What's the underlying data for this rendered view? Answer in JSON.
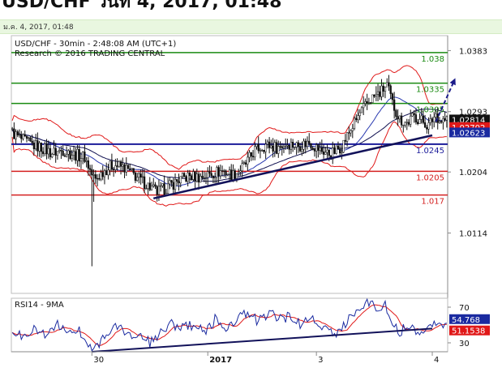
{
  "header": {
    "cut_title": "USD/CHF วันที่ 4, 2017, 01:48",
    "date_line": "ม.ค. 4, 2017, 01:48"
  },
  "chart_data": {
    "type": "candlestick",
    "title": "USD/CHF - 30min - 2:48:08 AM (UTC+1)",
    "subtitle": "Research © 2016 TRADING CENTRAL",
    "y_ticks": [
      "1.0383",
      "1.0293",
      "1.0204",
      "1.0114"
    ],
    "y_tick_values": [
      1.0383,
      1.0293,
      1.0204,
      1.0114
    ],
    "ylim": [
      1.0025,
      1.0405
    ],
    "x_ticks": [
      {
        "label": "30",
        "index": 44
      },
      {
        "label": "2017",
        "index": 108
      },
      {
        "label": "3",
        "index": 168
      },
      {
        "label": "4",
        "index": 232
      }
    ],
    "bar_count": 241,
    "levels": [
      {
        "value": 1.038,
        "label": "1.038",
        "kind": "resistance",
        "color": "#1a8a12"
      },
      {
        "value": 1.0335,
        "label": "1.0335",
        "kind": "resistance",
        "color": "#1a8a12"
      },
      {
        "value": 1.0305,
        "label": "1.0305",
        "kind": "resistance",
        "color": "#1a8a12"
      },
      {
        "value": 1.0245,
        "label": "1.0245",
        "kind": "pivot",
        "color": "#1c1c9a"
      },
      {
        "value": 1.0205,
        "label": "1.0205",
        "kind": "support",
        "color": "#d42020"
      },
      {
        "value": 1.017,
        "label": "1.017",
        "kind": "support",
        "color": "#d42020"
      }
    ],
    "price_boxes": [
      {
        "value": 1.02814,
        "label": "1.02814",
        "bg": "#111111",
        "fg": "#ffffff"
      },
      {
        "value": 1.02702,
        "label": "1.02702",
        "bg": "#e01818",
        "fg": "#ffffff"
      },
      {
        "value": 1.02623,
        "label": "1.02623",
        "bg": "#1a2aa0",
        "fg": "#ffffff"
      }
    ],
    "trendline": {
      "from": [
        78,
        1.0165
      ],
      "to": [
        232,
        1.0258
      ]
    },
    "forecast_arrow": {
      "from": [
        234,
        1.0278
      ],
      "to": [
        244,
        1.0338
      ]
    },
    "ohlc_path": [
      [
        0,
        1.0262
      ],
      [
        5,
        1.0252
      ],
      [
        10,
        1.0245
      ],
      [
        16,
        1.024
      ],
      [
        22,
        1.0232
      ],
      [
        28,
        1.0236
      ],
      [
        34,
        1.023
      ],
      [
        40,
        1.0226
      ],
      [
        44,
        1.02
      ],
      [
        46,
        1.0192
      ],
      [
        50,
        1.0205
      ],
      [
        56,
        1.0215
      ],
      [
        62,
        1.021
      ],
      [
        68,
        1.0198
      ],
      [
        74,
        1.0186
      ],
      [
        80,
        1.0174
      ],
      [
        86,
        1.0182
      ],
      [
        92,
        1.0192
      ],
      [
        98,
        1.0198
      ],
      [
        104,
        1.0196
      ],
      [
        110,
        1.0202
      ],
      [
        116,
        1.0206
      ],
      [
        122,
        1.02
      ],
      [
        128,
        1.0212
      ],
      [
        134,
        1.0236
      ],
      [
        140,
        1.0244
      ],
      [
        146,
        1.024
      ],
      [
        152,
        1.0246
      ],
      [
        158,
        1.0243
      ],
      [
        164,
        1.0248
      ],
      [
        170,
        1.0236
      ],
      [
        176,
        1.023
      ],
      [
        182,
        1.0242
      ],
      [
        186,
        1.0262
      ],
      [
        192,
        1.029
      ],
      [
        198,
        1.0312
      ],
      [
        203,
        1.032
      ],
      [
        207,
        1.0332
      ],
      [
        210,
        1.0305
      ],
      [
        214,
        1.0282
      ],
      [
        218,
        1.0276
      ],
      [
        222,
        1.0286
      ],
      [
        226,
        1.028
      ],
      [
        230,
        1.0272
      ],
      [
        234,
        1.029
      ],
      [
        236,
        1.028
      ],
      [
        240,
        1.0281
      ]
    ],
    "rsi": {
      "label": "RSI14 - 9MA",
      "y_ticks": [
        "70",
        "30"
      ],
      "y_tick_values": [
        70,
        30
      ],
      "ylim": [
        20,
        80
      ],
      "value_boxes": [
        {
          "value": 54.768,
          "label": "54.768",
          "bg": "#1a2aa0",
          "fg": "#ffffff"
        },
        {
          "value": 51.1538,
          "label": "51.1538",
          "bg": "#e01818",
          "fg": "#ffffff"
        }
      ],
      "trendline": {
        "from": [
          44,
          20
        ],
        "to": [
          232,
          46
        ]
      },
      "rsi_path": [
        [
          0,
          42
        ],
        [
          6,
          36
        ],
        [
          12,
          48
        ],
        [
          18,
          38
        ],
        [
          24,
          52
        ],
        [
          30,
          40
        ],
        [
          36,
          46
        ],
        [
          42,
          30
        ],
        [
          46,
          24
        ],
        [
          52,
          40
        ],
        [
          58,
          48
        ],
        [
          64,
          40
        ],
        [
          70,
          36
        ],
        [
          76,
          30
        ],
        [
          82,
          40
        ],
        [
          88,
          52
        ],
        [
          94,
          46
        ],
        [
          100,
          50
        ],
        [
          106,
          42
        ],
        [
          112,
          56
        ],
        [
          118,
          46
        ],
        [
          124,
          58
        ],
        [
          130,
          62
        ],
        [
          136,
          54
        ],
        [
          142,
          64
        ],
        [
          148,
          56
        ],
        [
          154,
          60
        ],
        [
          160,
          50
        ],
        [
          166,
          58
        ],
        [
          172,
          44
        ],
        [
          178,
          40
        ],
        [
          184,
          52
        ],
        [
          190,
          66
        ],
        [
          196,
          76
        ],
        [
          202,
          70
        ],
        [
          206,
          72
        ],
        [
          210,
          52
        ],
        [
          214,
          42
        ],
        [
          218,
          50
        ],
        [
          224,
          44
        ],
        [
          230,
          46
        ],
        [
          234,
          54
        ],
        [
          240,
          52
        ]
      ]
    }
  }
}
